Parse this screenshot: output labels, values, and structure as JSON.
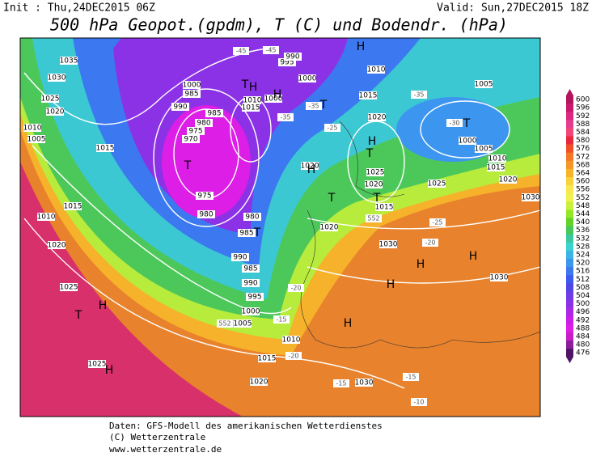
{
  "header": {
    "init": "Init : Thu,24DEC2015 06Z",
    "valid": "Valid: Sun,27DEC2015 18Z",
    "title": "500 hPa Geopot.(gpdm), T (C) und Bodendr. (hPa)"
  },
  "colorbar": {
    "values": [
      600,
      596,
      592,
      588,
      584,
      580,
      576,
      572,
      568,
      564,
      560,
      556,
      552,
      548,
      544,
      540,
      536,
      532,
      528,
      524,
      520,
      516,
      512,
      508,
      504,
      500,
      496,
      492,
      488,
      484,
      480,
      476
    ],
    "colors": [
      "#b4145a",
      "#c8196e",
      "#dc2882",
      "#e63c8c",
      "#f04678",
      "#e8283c",
      "#f05028",
      "#f57828",
      "#f59628",
      "#f8b428",
      "#fad23c",
      "#fae650",
      "#f0f050",
      "#c8f03c",
      "#96e628",
      "#64d228",
      "#46c85a",
      "#3cc8a0",
      "#3cd2d2",
      "#3cb4e6",
      "#3c96f0",
      "#3c78f0",
      "#3c5af0",
      "#5046e6",
      "#6e3ce6",
      "#8c32e6",
      "#aa28e6",
      "#c81ee6",
      "#dc1ee6",
      "#c81ec8",
      "#8c1e9b",
      "#501464"
    ]
  },
  "isobar_labels": [
    1035,
    1030,
    1025,
    1020,
    1010,
    1005,
    1015,
    1015,
    1010,
    1020,
    1025,
    1025,
    1020,
    1030,
    1015,
    1010,
    1005,
    1000,
    995,
    990,
    985,
    990,
    985,
    980,
    980,
    975,
    970,
    975,
    980,
    985,
    990,
    985,
    1000,
    1015,
    1010,
    995,
    990,
    1000,
    1000,
    1015,
    1010,
    1020,
    1025,
    1020,
    1015,
    1025,
    1020,
    1030,
    1030,
    1030,
    1005,
    1000,
    1005,
    1010,
    1015,
    1020,
    1020
  ],
  "temperature_labels": [
    -45,
    -45,
    -35,
    -35,
    -25,
    -35,
    -30,
    -25,
    -20,
    -20,
    -20,
    -15,
    -15,
    -15,
    -10,
    552,
    552
  ],
  "pressure_centers": [
    "H",
    "H",
    "H",
    "H",
    "H",
    "H",
    "H",
    "H",
    "H",
    "H",
    "H",
    "T",
    "T",
    "T",
    "T",
    "T",
    "T",
    "T",
    "T",
    "T"
  ],
  "footer": [
    "Daten: GFS-Modell des amerikanischen Wetterdienstes",
    "(C) Wetterzentrale",
    "www.wetterzentrale.de"
  ]
}
